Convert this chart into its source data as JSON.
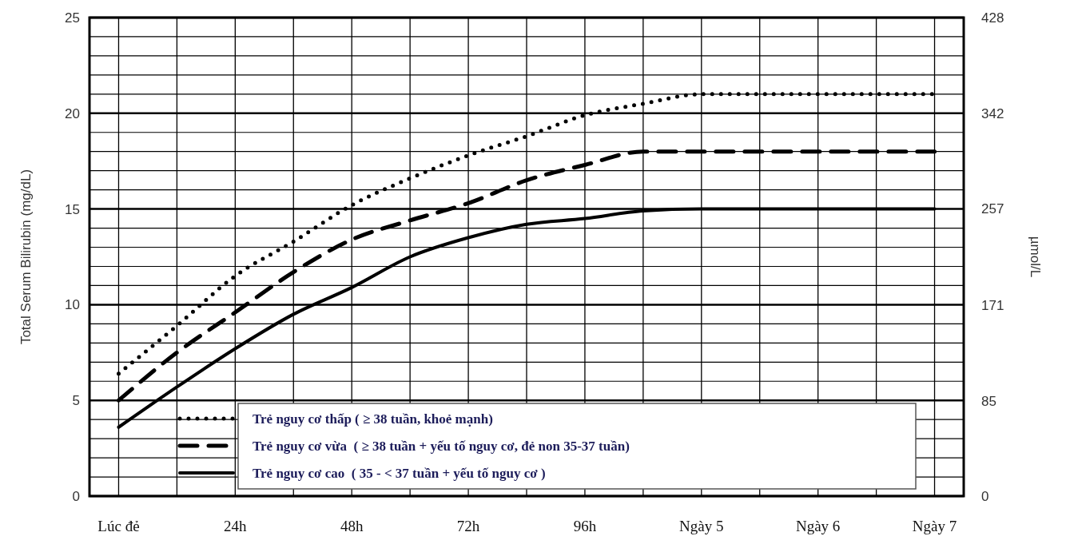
{
  "chart_data": {
    "type": "line",
    "ylabel": "Total Serum Bilirubin (mg/dL)",
    "y2label": "µmol/L",
    "x": [
      0,
      12,
      24,
      36,
      48,
      60,
      72,
      84,
      96,
      108,
      120,
      132,
      144,
      156,
      168
    ],
    "xlim": [
      -6,
      174
    ],
    "xticks": [
      {
        "value": 0,
        "label": "Lúc đẻ"
      },
      {
        "value": 12,
        "label": null
      },
      {
        "value": 24,
        "label": "24h"
      },
      {
        "value": 36,
        "label": null
      },
      {
        "value": 48,
        "label": "48h"
      },
      {
        "value": 60,
        "label": null
      },
      {
        "value": 72,
        "label": "72h"
      },
      {
        "value": 84,
        "label": null
      },
      {
        "value": 96,
        "label": "96h"
      },
      {
        "value": 108,
        "label": null
      },
      {
        "value": 120,
        "label": "Ngày 5"
      },
      {
        "value": 132,
        "label": null
      },
      {
        "value": 144,
        "label": "Ngày 6"
      },
      {
        "value": 156,
        "label": null
      },
      {
        "value": 168,
        "label": "Ngày 7"
      }
    ],
    "ylim": [
      0,
      25
    ],
    "yticks": [
      0,
      {
        "value": 1,
        "label": null
      },
      {
        "value": 2,
        "label": null
      },
      {
        "value": 3,
        "label": null
      },
      {
        "value": 4,
        "label": null
      },
      5,
      {
        "value": 6,
        "label": null
      },
      {
        "value": 7,
        "label": null
      },
      {
        "value": 8,
        "label": null
      },
      {
        "value": 9,
        "label": null
      },
      10,
      {
        "value": 11,
        "label": null
      },
      {
        "value": 12,
        "label": null
      },
      {
        "value": 13,
        "label": null
      },
      {
        "value": 14,
        "label": null
      },
      15,
      {
        "value": 16,
        "label": null
      },
      {
        "value": 17,
        "label": null
      },
      {
        "value": 18,
        "label": null
      },
      {
        "value": 19,
        "label": null
      },
      20,
      {
        "value": 21,
        "label": null
      },
      {
        "value": 22,
        "label": null
      },
      {
        "value": 23,
        "label": null
      },
      {
        "value": 24,
        "label": null
      },
      25
    ],
    "y2lim": [
      0,
      428
    ],
    "y2ticks": [
      0,
      85,
      171,
      257,
      342,
      428
    ],
    "grid": true,
    "legend": "bottom",
    "series": [
      {
        "name": "Trẻ nguy cơ thấp ( ≥ 38 tuần, khoẻ mạnh)",
        "color": "#000000",
        "line_style": "dotted",
        "values": [
          6.4,
          8.9,
          11.5,
          13.3,
          15.2,
          16.6,
          17.8,
          18.8,
          19.9,
          20.5,
          21,
          21,
          21,
          21,
          21
        ]
      },
      {
        "name": "Trẻ nguy cơ vừa  ( ≥ 38 tuần + yếu tố nguy cơ, đẻ non 35-37 tuần)",
        "color": "#000000",
        "line_style": "dashed",
        "values": [
          5,
          7.5,
          9.6,
          11.7,
          13.4,
          14.4,
          15.3,
          16.5,
          17.3,
          18,
          18,
          18,
          18,
          18,
          18
        ]
      },
      {
        "name": "Trẻ nguy cơ cao  ( 35 - < 37 tuần + yếu tố nguy cơ )",
        "color": "#000000",
        "line_style": "solid",
        "values": [
          3.6,
          5.7,
          7.7,
          9.5,
          10.9,
          12.5,
          13.5,
          14.2,
          14.5,
          14.9,
          15,
          15,
          15,
          15,
          15
        ]
      }
    ]
  }
}
